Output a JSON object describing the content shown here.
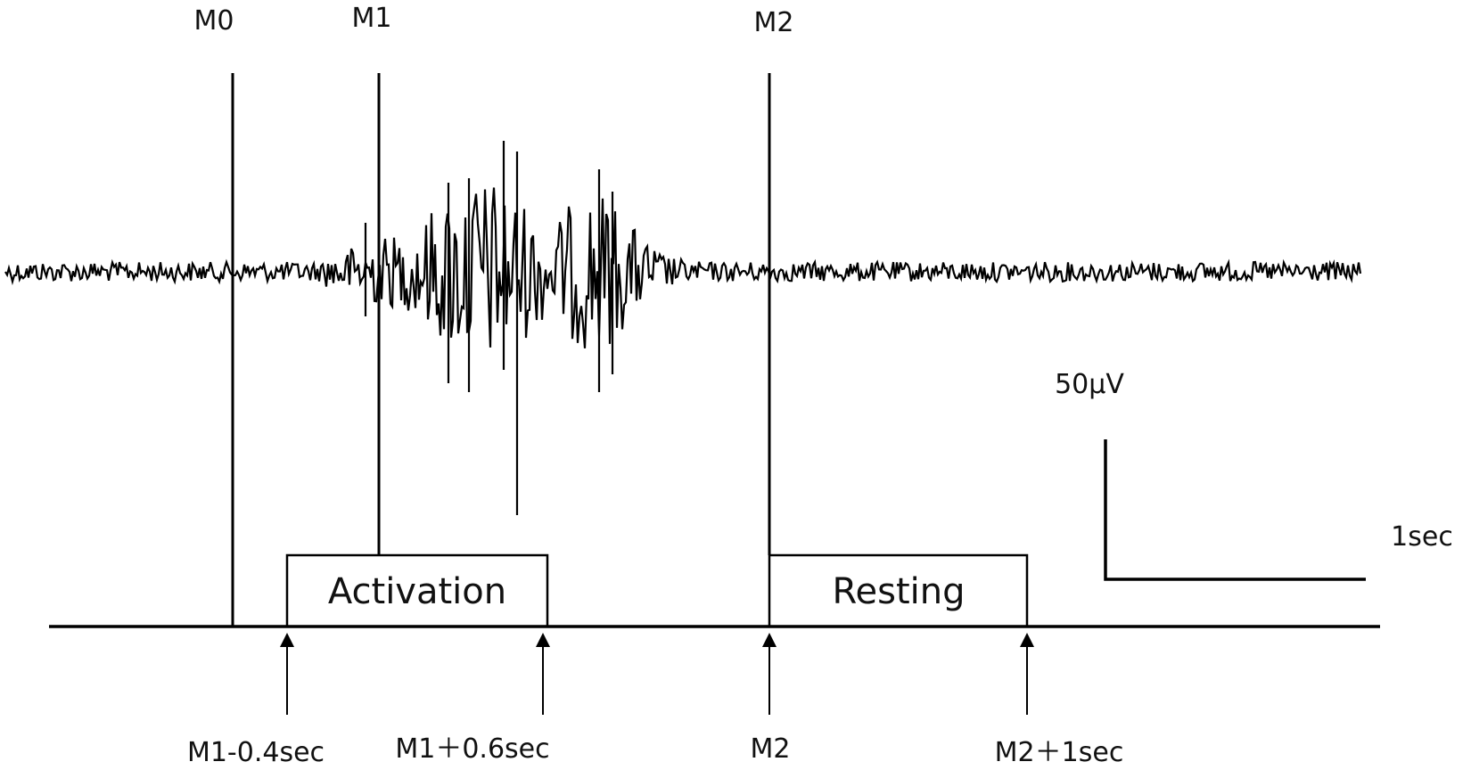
{
  "markers": [
    {
      "label": "M0"
    },
    {
      "label": "M1"
    },
    {
      "label": "M2"
    }
  ],
  "epochs": [
    {
      "label": "Activation"
    },
    {
      "label": "Resting"
    }
  ],
  "timepoints": [
    {
      "label": "M1-0.4sec"
    },
    {
      "label": "M1＋0.6sec"
    },
    {
      "label": "M2"
    },
    {
      "label": "M2＋1sec"
    }
  ],
  "scale_bar": {
    "amplitude_label": "50μV",
    "time_label": "1sec"
  },
  "colors": {
    "ink": "#000000",
    "background": "#ffffff"
  }
}
